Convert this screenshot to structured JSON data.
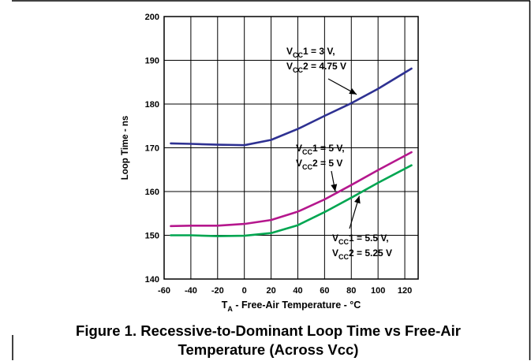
{
  "caption": {
    "line1": "Figure 1. Recessive-to-Dominant Loop Time vs Free-Air",
    "line2": "Temperature (Across Vcc)"
  },
  "chart_data": {
    "type": "line",
    "xlabel": {
      "prefix": "T",
      "sub": "A",
      "rest": " - Free-Air Temperature - °C"
    },
    "ylabel": "Loop Time - ns",
    "xlim": [
      -60,
      130
    ],
    "ylim": [
      140,
      200
    ],
    "xticks": [
      -60,
      -40,
      -20,
      0,
      20,
      40,
      60,
      80,
      100,
      120
    ],
    "yticks": [
      140,
      150,
      160,
      170,
      180,
      190,
      200
    ],
    "grid": true,
    "series": [
      {
        "name": "VCC1 = 3 V, VCC2 = 4.75 V",
        "color": "#2e3192",
        "x": [
          -55,
          -40,
          -20,
          0,
          20,
          40,
          60,
          80,
          100,
          125
        ],
        "y": [
          171,
          170.9,
          170.7,
          170.6,
          171.8,
          174.3,
          177.3,
          180.2,
          183.5,
          188.1
        ],
        "label_lines": [
          {
            "main": "V",
            "sub": "CC",
            "rest": "1 = 3 V,"
          },
          {
            "main": "V",
            "sub": "CC",
            "rest": "2 = 4.75 V"
          }
        ]
      },
      {
        "name": "VCC1 = 5 V, VCC2 = 5 V",
        "color": "#b5178d",
        "x": [
          -55,
          -40,
          -20,
          0,
          20,
          40,
          60,
          80,
          100,
          125
        ],
        "y": [
          152.1,
          152.2,
          152.2,
          152.6,
          153.5,
          155.4,
          158.2,
          161.5,
          164.9,
          169
        ],
        "label_lines": [
          {
            "main": "V",
            "sub": "CC",
            "rest": "1 = 5 V,"
          },
          {
            "main": "V",
            "sub": "CC",
            "rest": "2 = 5 V"
          }
        ]
      },
      {
        "name": "VCC1 = 5.5 V, VCC2 = 5.25 V",
        "color": "#00a651",
        "x": [
          -55,
          -40,
          -20,
          0,
          20,
          40,
          60,
          80,
          100,
          125
        ],
        "y": [
          150,
          150,
          149.8,
          149.9,
          150.5,
          152.3,
          155.3,
          158.6,
          162,
          166
        ],
        "label_lines": [
          {
            "main": "V",
            "sub": "CC",
            "rest": "1 = 5.5 V,"
          },
          {
            "main": "V",
            "sub": "CC",
            "rest": "2 = 5.25 V"
          }
        ]
      }
    ]
  }
}
